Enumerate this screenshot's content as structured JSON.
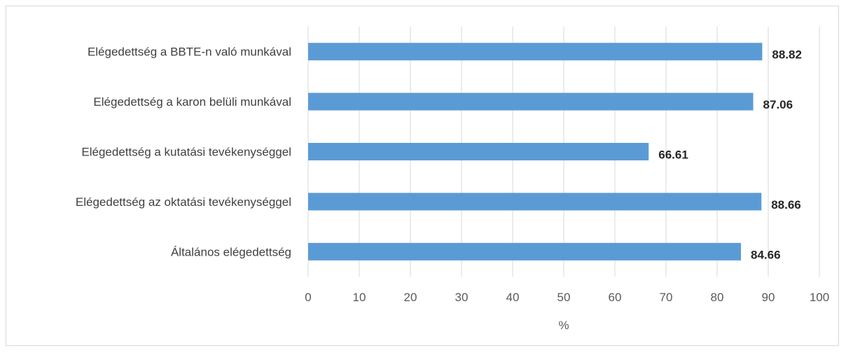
{
  "chart_data": {
    "type": "bar",
    "orientation": "horizontal",
    "categories": [
      "Elégedettség a BBTE-n való munkával",
      "Elégedettség a karon belüli munkával",
      "Elégedettség a kutatási tevékenységgel",
      "Elégedettség az oktatási tevékenységgel",
      "Általános elégedettség"
    ],
    "values": [
      88.82,
      87.06,
      66.61,
      88.66,
      84.66
    ],
    "data_labels": [
      "88.82",
      "87.06",
      "66.61",
      "88.66",
      "84.66"
    ],
    "xlabel": "%",
    "ylabel": "",
    "title": "",
    "xlim": [
      0,
      100
    ],
    "xticks": [
      0,
      10,
      20,
      30,
      40,
      50,
      60,
      70,
      80,
      90,
      100
    ],
    "grid": true,
    "legend": "none",
    "bar_color": "#5b9bd5",
    "grid_color": "#d9d9d9"
  }
}
